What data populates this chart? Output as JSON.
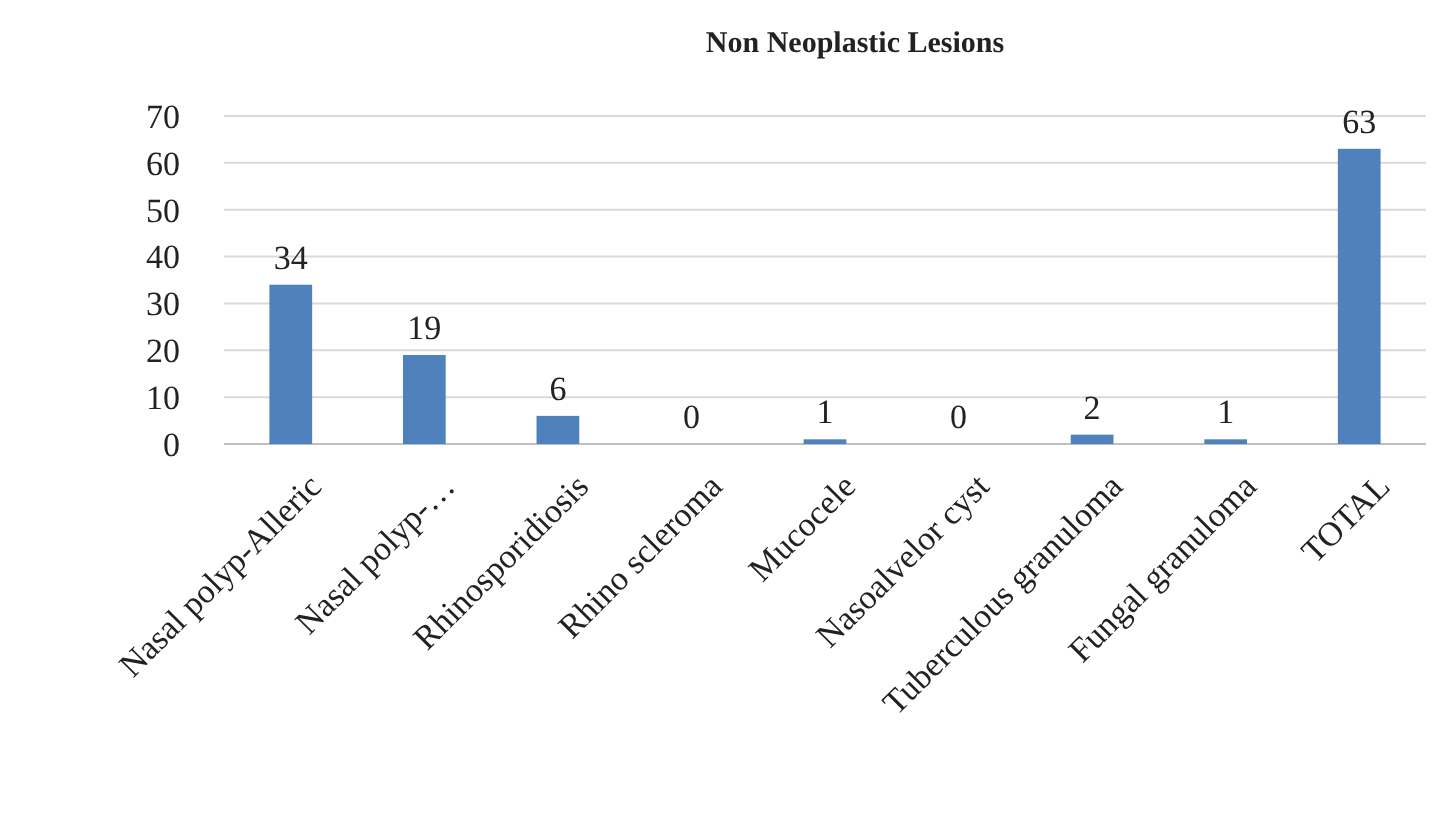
{
  "chart_data": {
    "type": "bar",
    "title": "Non Neoplastic Lesions",
    "categories": [
      "Nasal polyp-Alleric",
      "Nasal polyp-…",
      "Rhinosporidiosis",
      "Rhino scleroma",
      "Mucocele",
      "Nasoalvelor cyst",
      "Tuberculous granuloma",
      "Fungal granuloma",
      "TOTAL"
    ],
    "values": [
      34,
      19,
      6,
      0,
      1,
      0,
      2,
      1,
      63
    ],
    "color": "#4f81bd",
    "ylim": [
      0,
      70
    ],
    "yticks": [
      0,
      10,
      20,
      30,
      40,
      50,
      60,
      70
    ],
    "grid": "y",
    "data_labels": true
  }
}
